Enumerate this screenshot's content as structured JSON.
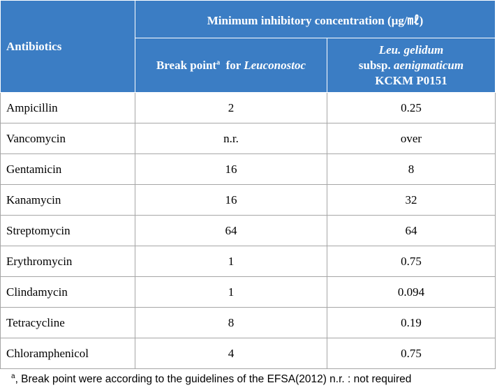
{
  "header": {
    "antibiotics": "Antibiotics",
    "mic": "Minimum  inhibitory  concentration (μg/㎖)",
    "break_point": "Break point",
    "break_point_sup": "a",
    "break_point_for": "for",
    "break_point_genus": "Leuconostoc",
    "strain_species": "Leu. gelidum",
    "strain_subsp": "subsp.",
    "strain_subsp_name": "aenigmaticum",
    "strain_id": "KCKM  P0151"
  },
  "table": {
    "rows": [
      [
        "Ampicillin",
        "2",
        "0.25"
      ],
      [
        "Vancomycin",
        "n.r.",
        "over"
      ],
      [
        "Gentamicin",
        "16",
        "8"
      ],
      [
        "Kanamycin",
        "16",
        "32"
      ],
      [
        "Streptomycin",
        "64",
        "64"
      ],
      [
        "Erythromycin",
        "1",
        "0.75"
      ],
      [
        "Clindamycin",
        "1",
        "0.094"
      ],
      [
        "Tetracycline",
        "8",
        "0.19"
      ],
      [
        "Chloramphenicol",
        "4",
        "0.75"
      ]
    ]
  },
  "footnote": {
    "mark": "a",
    "text": ", Break point were according to the guidelines of the EFSA(2012)  n.r. : not required"
  }
}
